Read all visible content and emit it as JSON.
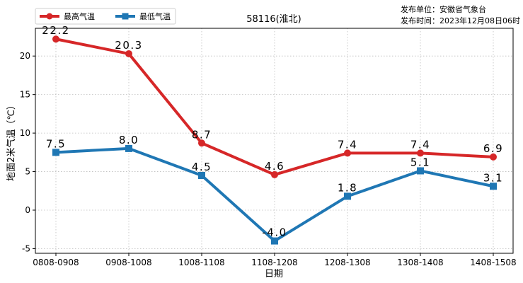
{
  "chart_data": {
    "type": "line",
    "title": "58116(淮北)",
    "publisher": {
      "unit_line": "发布单位：安徽省气象台",
      "time_line": "发布时间：2023年12月08日06时"
    },
    "xlabel": "日期",
    "ylabel": "地面2米气温（℃）",
    "categories": [
      "0808-0908",
      "0908-1008",
      "1008-1108",
      "1108-1208",
      "1208-1308",
      "1308-1408",
      "1408-1508"
    ],
    "yticks": [
      -5,
      0,
      5,
      10,
      15,
      20
    ],
    "ylim": [
      -5.6,
      23.6
    ],
    "grid": true,
    "legend_position": "top-left",
    "series": [
      {
        "name": "最高气温",
        "color": "#d62728",
        "marker": "circle",
        "values": [
          22.2,
          20.3,
          8.7,
          4.6,
          7.4,
          7.4,
          6.9
        ],
        "labels": [
          "22.2",
          "20.3",
          "8.7",
          "4.6",
          "7.4",
          "7.4",
          "6.9"
        ]
      },
      {
        "name": "最低气温",
        "color": "#1f77b4",
        "marker": "square",
        "values": [
          7.5,
          8.0,
          4.5,
          -4.0,
          1.8,
          5.1,
          3.1
        ],
        "labels": [
          "7.5",
          "8.0",
          "4.5",
          "-4.0",
          "1.8",
          "5.1",
          "3.1"
        ]
      }
    ]
  }
}
